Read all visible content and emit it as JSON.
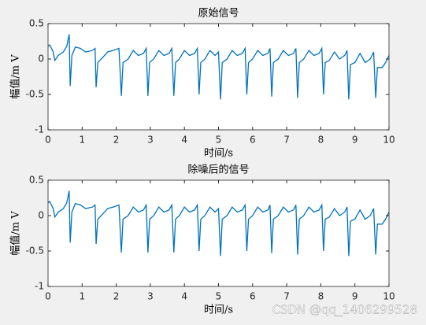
{
  "chart_data": [
    {
      "type": "line",
      "title": "原始信号",
      "xlabel": "时间/s",
      "ylabel": "幅值/m V",
      "color": "#0072bd",
      "x": [
        0,
        0.05,
        0.15,
        0.2,
        0.3,
        0.45,
        0.55,
        0.62,
        0.65,
        0.7,
        0.8,
        0.95,
        1.1,
        1.3,
        1.38,
        1.41,
        1.46,
        1.6,
        1.75,
        1.9,
        2.08,
        2.15,
        2.2,
        2.35,
        2.5,
        2.65,
        2.8,
        2.88,
        2.93,
        2.98,
        3.1,
        3.25,
        3.4,
        3.55,
        3.63,
        3.69,
        3.74,
        3.85,
        4.0,
        4.15,
        4.3,
        4.38,
        4.43,
        4.48,
        4.6,
        4.75,
        4.9,
        5.0,
        5.06,
        5.11,
        5.25,
        5.4,
        5.55,
        5.7,
        5.78,
        5.83,
        5.88,
        6.0,
        6.15,
        6.3,
        6.45,
        6.51,
        6.56,
        6.61,
        6.75,
        6.9,
        7.05,
        7.2,
        7.27,
        7.32,
        7.37,
        7.5,
        7.65,
        7.8,
        7.95,
        8.03,
        8.08,
        8.13,
        8.25,
        8.4,
        8.55,
        8.7,
        8.77,
        8.82,
        8.87,
        9.0,
        9.15,
        9.3,
        9.45,
        9.55,
        9.61,
        9.66,
        9.8,
        9.9,
        10
      ],
      "values": [
        0.18,
        0.2,
        0.1,
        -0.02,
        0.05,
        0.1,
        0.18,
        0.35,
        -0.38,
        0.05,
        0.17,
        0.15,
        0.1,
        0.12,
        0.15,
        -0.4,
        -0.05,
        0.02,
        0.1,
        0.12,
        0.15,
        -0.52,
        -0.05,
        0,
        0.12,
        0.05,
        0.08,
        0.15,
        -0.52,
        -0.05,
        0,
        0.12,
        0.05,
        0.08,
        0.15,
        -0.52,
        -0.05,
        0,
        0.12,
        0.05,
        0.08,
        0.15,
        -0.5,
        -0.05,
        0,
        0.12,
        0.05,
        0.1,
        -0.57,
        -0.05,
        0,
        0.12,
        0.05,
        0.08,
        0.15,
        -0.5,
        -0.05,
        0,
        0.12,
        0.05,
        0.08,
        0.15,
        -0.53,
        -0.05,
        0,
        0.12,
        0.05,
        0.08,
        0.15,
        -0.55,
        -0.05,
        0,
        0.12,
        0.05,
        0.08,
        0.15,
        -0.5,
        -0.05,
        -0.02,
        0.1,
        0,
        0.05,
        0.12,
        -0.57,
        -0.08,
        -0.05,
        0.08,
        -0.05,
        0,
        0.1,
        -0.55,
        -0.12,
        -0.12,
        -0.05,
        0.05
      ],
      "xlim": [
        0,
        10
      ],
      "xticks": [
        0,
        1,
        2,
        3,
        4,
        5,
        6,
        7,
        8,
        9,
        10
      ],
      "ylim": [
        -1,
        0.5
      ],
      "yticks": [
        -1,
        -0.5,
        0,
        0.5
      ]
    },
    {
      "type": "line",
      "title": "除噪后的信号",
      "xlabel": "时间/s",
      "ylabel": "幅值/m V",
      "color": "#0072bd",
      "x": [
        0,
        0.05,
        0.15,
        0.2,
        0.3,
        0.45,
        0.55,
        0.62,
        0.65,
        0.7,
        0.8,
        0.95,
        1.1,
        1.3,
        1.38,
        1.41,
        1.46,
        1.6,
        1.75,
        1.9,
        2.08,
        2.15,
        2.2,
        2.35,
        2.5,
        2.65,
        2.8,
        2.88,
        2.93,
        2.98,
        3.1,
        3.25,
        3.4,
        3.55,
        3.63,
        3.69,
        3.74,
        3.85,
        4.0,
        4.15,
        4.3,
        4.38,
        4.43,
        4.48,
        4.6,
        4.75,
        4.9,
        5.0,
        5.06,
        5.11,
        5.25,
        5.4,
        5.55,
        5.7,
        5.78,
        5.83,
        5.88,
        6.0,
        6.15,
        6.3,
        6.45,
        6.51,
        6.56,
        6.61,
        6.75,
        6.9,
        7.05,
        7.2,
        7.27,
        7.32,
        7.37,
        7.5,
        7.65,
        7.8,
        7.95,
        8.03,
        8.08,
        8.13,
        8.25,
        8.4,
        8.55,
        8.7,
        8.77,
        8.82,
        8.87,
        9.0,
        9.15,
        9.3,
        9.45,
        9.55,
        9.61,
        9.66,
        9.8,
        9.9,
        10
      ],
      "values": [
        0.18,
        0.2,
        0.1,
        -0.02,
        0.05,
        0.1,
        0.18,
        0.35,
        -0.38,
        0.05,
        0.17,
        0.15,
        0.1,
        0.12,
        0.15,
        -0.4,
        -0.05,
        0.02,
        0.1,
        0.12,
        0.15,
        -0.52,
        -0.05,
        0,
        0.12,
        0.05,
        0.08,
        0.15,
        -0.52,
        -0.05,
        0,
        0.12,
        0.05,
        0.08,
        0.15,
        -0.52,
        -0.05,
        0,
        0.12,
        0.05,
        0.08,
        0.15,
        -0.5,
        -0.05,
        0,
        0.12,
        0.05,
        0.1,
        -0.57,
        -0.05,
        0,
        0.12,
        0.05,
        0.08,
        0.15,
        -0.5,
        -0.05,
        0,
        0.12,
        0.05,
        0.08,
        0.15,
        -0.53,
        -0.05,
        0,
        0.12,
        0.05,
        0.08,
        0.15,
        -0.55,
        -0.05,
        0,
        0.12,
        0.05,
        0.08,
        0.15,
        -0.5,
        -0.05,
        -0.02,
        0.1,
        0,
        0.05,
        0.12,
        -0.57,
        -0.08,
        -0.05,
        0.08,
        -0.05,
        0,
        0.1,
        -0.55,
        -0.12,
        -0.12,
        -0.05,
        0.05
      ],
      "xlim": [
        0,
        10
      ],
      "xticks": [
        0,
        1,
        2,
        3,
        4,
        5,
        6,
        7,
        8,
        9,
        10
      ],
      "ylim": [
        -1,
        0.5
      ],
      "yticks": [
        -1,
        -0.5,
        0,
        0.5
      ]
    }
  ],
  "watermark": "CSDN @qq_1406299528"
}
